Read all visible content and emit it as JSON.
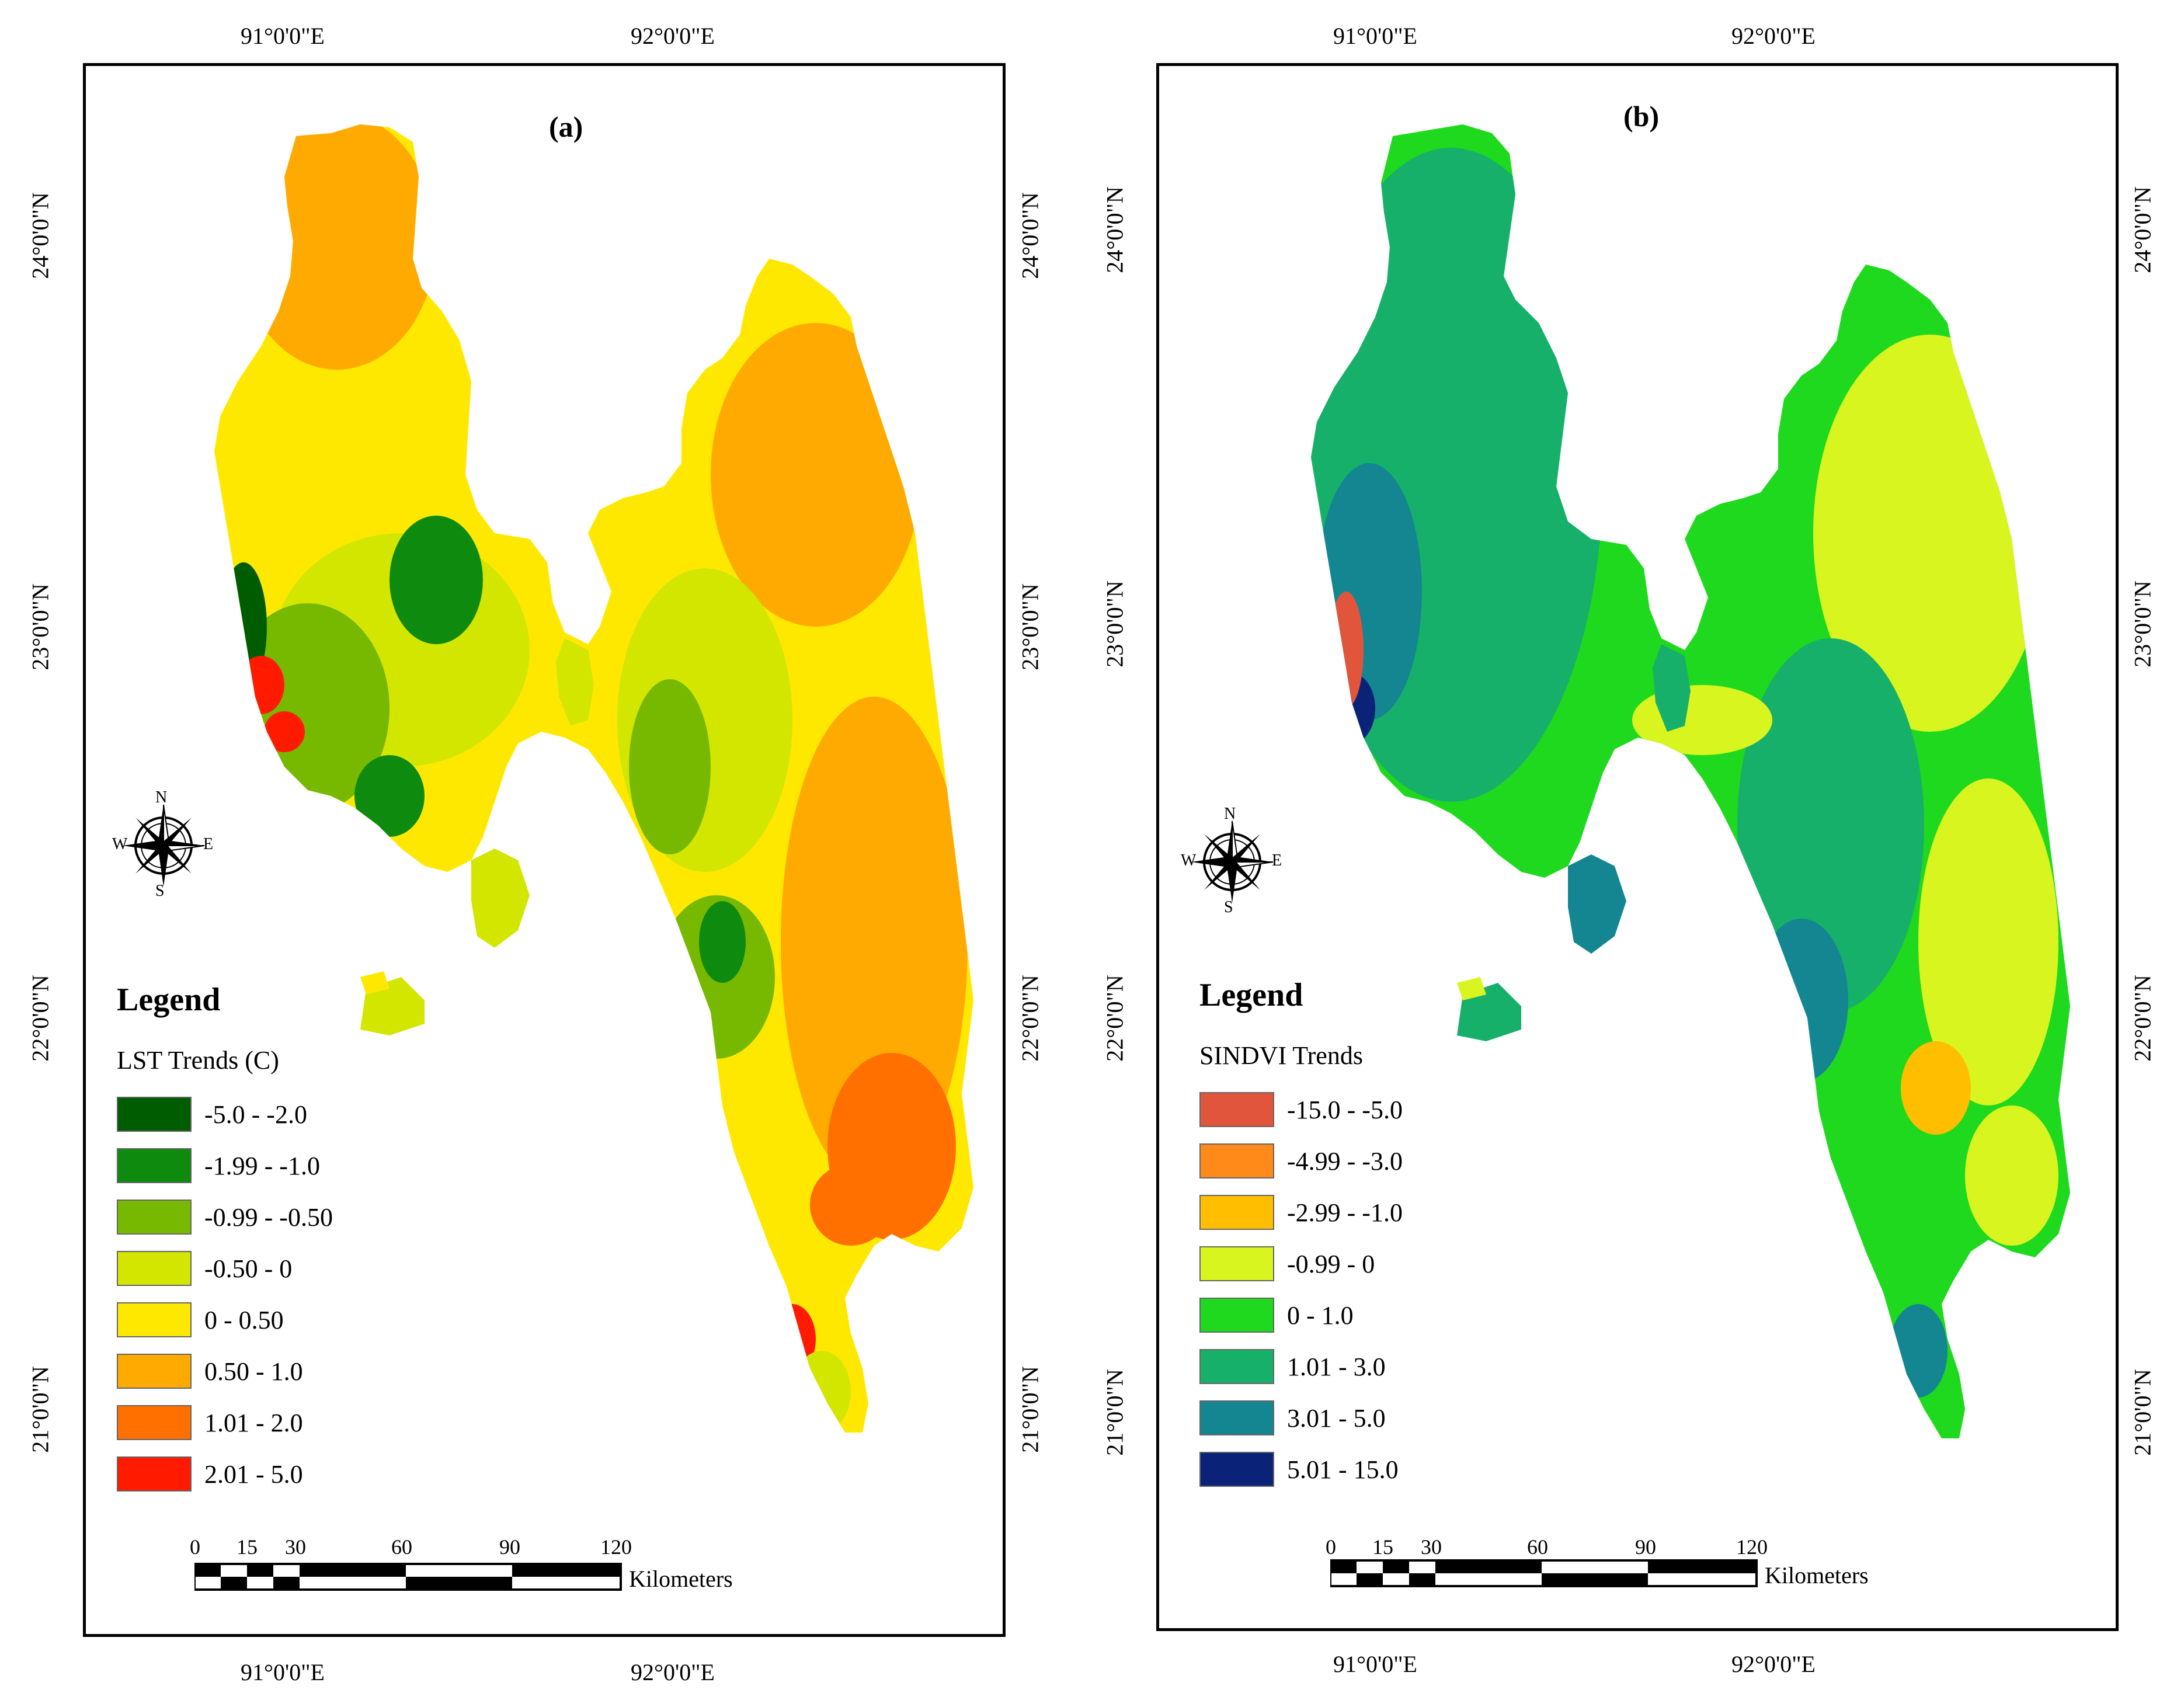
{
  "panels": [
    {
      "label": "(a)",
      "legend_title": "Legend",
      "legend_subtitle": "LST Trends (C)",
      "legend_items": [
        {
          "label": "-5.0 - -2.0",
          "color": "#005c00"
        },
        {
          "label": "-1.99 - -1.0",
          "color": "#0e8a0e"
        },
        {
          "label": "-0.99 - -0.50",
          "color": "#76b900"
        },
        {
          "label": "-0.50 - 0",
          "color": "#d2e600"
        },
        {
          "label": "0 - 0.50",
          "color": "#ffe800"
        },
        {
          "label": "0.50 - 1.0",
          "color": "#ffaa00"
        },
        {
          "label": "1.01 - 2.0",
          "color": "#ff7000"
        },
        {
          "label": "2.01 - 5.0",
          "color": "#ff1a00"
        }
      ],
      "top_lon": [
        "91°0'0\"E",
        "92°0'0\"E"
      ],
      "bottom_lon": [
        "91°0'0\"E",
        "92°0'0\"E"
      ],
      "left_lat": [
        "24°0'0\"N",
        "23°0'0\"N",
        "22°0'0\"N",
        "21°0'0\"N"
      ],
      "right_lat": [
        "24°0'0\"N",
        "23°0'0\"N",
        "22°0'0\"N",
        "21°0'0\"N"
      ],
      "scale_numbers": [
        "0",
        "15",
        "30",
        "60",
        "90",
        "120"
      ],
      "scale_unit": "Kilometers",
      "compass": {
        "n": "N",
        "s": "S",
        "e": "E",
        "w": "W"
      }
    },
    {
      "label": "(b)",
      "legend_title": "Legend",
      "legend_subtitle": "SINDVI Trends",
      "legend_items": [
        {
          "label": "-15.0 - -5.0",
          "color": "#e0553c"
        },
        {
          "label": "-4.99 - -3.0",
          "color": "#ff8a1a"
        },
        {
          "label": "-2.99 - -1.0",
          "color": "#ffbe00"
        },
        {
          "label": "-0.99 - 0",
          "color": "#d8f520"
        },
        {
          "label": "0 - 1.0",
          "color": "#1ed91e"
        },
        {
          "label": "1.01 - 3.0",
          "color": "#17b06a"
        },
        {
          "label": "3.01 - 5.0",
          "color": "#138692"
        },
        {
          "label": "5.01 - 15.0",
          "color": "#0a2378"
        }
      ],
      "top_lon": [
        "91°0'0\"E",
        "92°0'0\"E"
      ],
      "bottom_lon": [
        "91°0'0\"E",
        "92°0'0\"E"
      ],
      "left_lat": [
        "24°0'0\"N",
        "23°0'0\"N",
        "22°0'0\"N",
        "21°0'0\"N"
      ],
      "right_lat": [
        "24°0'0\"N",
        "23°0'0\"N",
        "22°0'0\"N",
        "21°0'0\"N"
      ],
      "scale_numbers": [
        "0",
        "15",
        "30",
        "60",
        "90",
        "120"
      ],
      "scale_unit": "Kilometers",
      "compass": {
        "n": "N",
        "s": "S",
        "e": "E",
        "w": "W"
      }
    }
  ]
}
